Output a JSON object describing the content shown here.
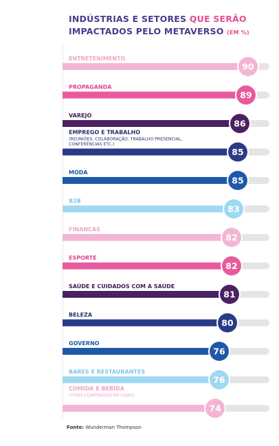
{
  "title": {
    "part1": "INDÚSTRIAS E SETORES ",
    "part2": "QUE SERÃO",
    "part3": "IMPACTADOS PELO METAVERSO ",
    "part4": "(EM %)"
  },
  "source": {
    "label": "Fonte:",
    "text": "Wunderman Thompson"
  },
  "chart_data": {
    "type": "bar",
    "orientation": "horizontal",
    "title": "INDÚSTRIAS E SETORES QUE SERÃO IMPACTADOS PELO METAVERSO (EM %)",
    "unit": "%",
    "xlim": [
      0,
      100
    ],
    "grid": false,
    "legend": "none",
    "categories": [
      "ENTRETENIMENTO",
      "PROPAGANDA",
      "VAREJO",
      "EMPREGO E TRABALHO",
      "MODA",
      "B2B",
      "FINANÇAS",
      "ESPORTE",
      "SAÚDE E CUIDADOS COM A SAÚDE",
      "BELEZA",
      "GOVERNO",
      "BARES E RESTAURANTES",
      "COMIDA E BEBIDA"
    ],
    "sublabels": [
      "",
      "",
      "",
      "(REUNIÕES, COLABORAÇÃO, TRABALHO PRESENCIAL, CONFERÊNCIAS ETC.)",
      "",
      "",
      "",
      "",
      "",
      "",
      "",
      "",
      "(ITENS COMPRADOS EM LOJAS)"
    ],
    "values": [
      90,
      89,
      86,
      85,
      85,
      83,
      82,
      82,
      81,
      80,
      76,
      76,
      74
    ],
    "colors": [
      "#f2b6d2",
      "#e75a9d",
      "#4a2162",
      "#2a3a86",
      "#1f58a8",
      "#9fd8f2",
      "#f2b6d2",
      "#e75a9d",
      "#4a2162",
      "#2a3a86",
      "#1f58a8",
      "#9fd8f2",
      "#f2b6d2"
    ],
    "label_colors": [
      "#f0a2c8",
      "#e0458e",
      "#3f1a57",
      "#27306f",
      "#1f58a8",
      "#7cc8ec",
      "#f0a2c8",
      "#e0458e",
      "#3f1a57",
      "#27306f",
      "#1f58a8",
      "#7cc8ec",
      "#f0a2c8"
    ],
    "track_color": "#e5e5e8"
  }
}
